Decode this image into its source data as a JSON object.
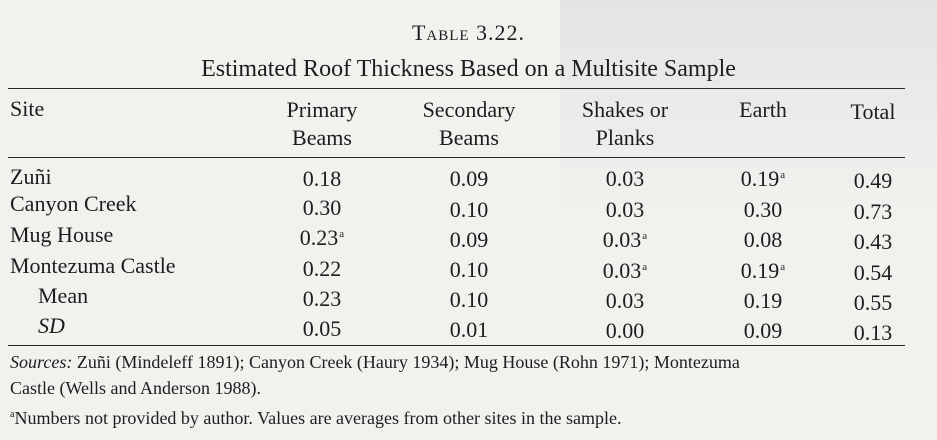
{
  "table_number": "Table 3.22.",
  "table_title": "Estimated Roof Thickness Based on a Multisite Sample",
  "headers": {
    "site": "Site",
    "primary": [
      "Primary",
      "Beams"
    ],
    "secondary": [
      "Secondary",
      "Beams"
    ],
    "shakes": [
      "Shakes or",
      "Planks"
    ],
    "earth": "Earth",
    "total": "Total"
  },
  "footnote_marker": "a",
  "rows": [
    {
      "site": "Zuñi",
      "primary": "0.18",
      "secondary": "0.09",
      "shakes": "0.03",
      "earth": "0.19",
      "total": "0.49"
    },
    {
      "site": "Canyon Creek",
      "primary": "0.30",
      "secondary": "0.10",
      "shakes": "0.03",
      "earth": "0.30",
      "total": "0.73"
    },
    {
      "site": "Mug House",
      "primary": "0.23",
      "secondary": "0.09",
      "shakes": "0.03",
      "earth": "0.08",
      "total": "0.43"
    },
    {
      "site": "Montezuma Castle",
      "primary": "0.22",
      "secondary": "0.10",
      "shakes": "0.03",
      "earth": "0.19",
      "total": "0.54"
    }
  ],
  "summary": [
    {
      "label": "Mean",
      "primary": "0.23",
      "secondary": "0.10",
      "shakes": "0.03",
      "earth": "0.19",
      "total": "0.55"
    },
    {
      "label": "SD",
      "primary": "0.05",
      "secondary": "0.01",
      "shakes": "0.00",
      "earth": "0.09",
      "total": "0.13"
    }
  ],
  "sources": {
    "lead": "Sources:",
    "line1": "Zuñi (Mindeleff 1891); Canyon Creek (Haury 1934); Mug House (Rohn 1971); Montezuma",
    "line2": "Castle (Wells and Anderson 1988)."
  },
  "footnote_text": "Numbers not provided by author. Values are averages from other sites in the sample."
}
